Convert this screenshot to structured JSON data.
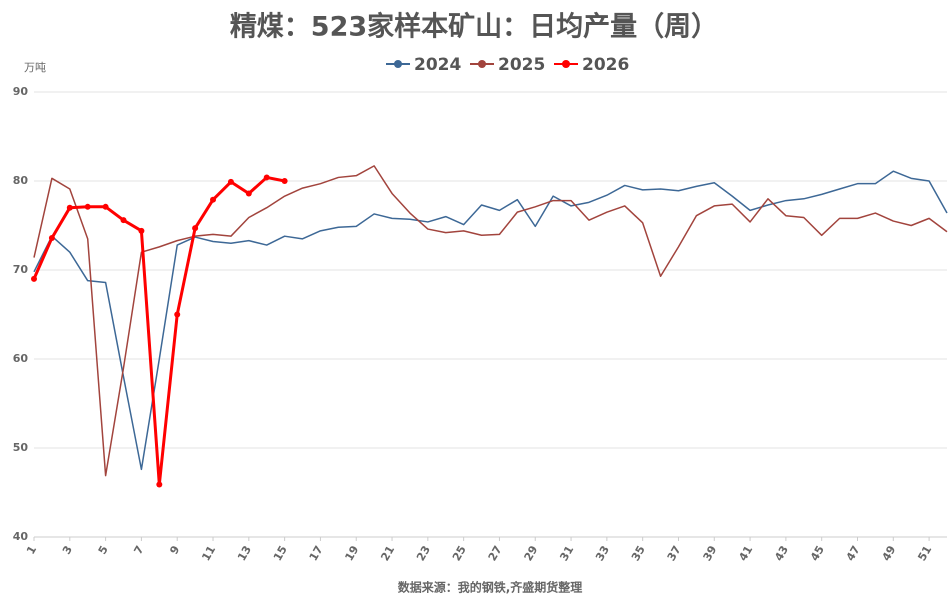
{
  "chart_data": {
    "type": "line",
    "title": "精煤：523家样本矿山：日均产量（周）",
    "y_unit": "万吨",
    "source": "数据来源：我的钢铁,齐盛期货整理",
    "x": [
      1,
      2,
      3,
      4,
      5,
      6,
      7,
      8,
      9,
      10,
      11,
      12,
      13,
      14,
      15,
      16,
      17,
      18,
      19,
      20,
      21,
      22,
      23,
      24,
      25,
      26,
      27,
      28,
      29,
      30,
      31,
      32,
      33,
      34,
      35,
      36,
      37,
      38,
      39,
      40,
      41,
      42,
      43,
      44,
      45,
      46,
      47,
      48,
      49,
      50,
      51,
      52
    ],
    "xlim": [
      1,
      52
    ],
    "xticks": [
      1,
      3,
      5,
      7,
      9,
      11,
      13,
      15,
      17,
      19,
      21,
      23,
      25,
      27,
      29,
      31,
      33,
      35,
      37,
      39,
      41,
      43,
      45,
      47,
      49,
      51
    ],
    "ylim": [
      40,
      90
    ],
    "yticks": [
      40,
      50,
      60,
      70,
      80,
      90
    ],
    "grid": true,
    "legend": "top",
    "series": [
      {
        "name": "2024",
        "color": "#3d6896",
        "width": 1.5,
        "markers": false,
        "values": [
          69.8,
          73.8,
          72,
          68.8,
          68.6,
          58,
          47.6,
          60,
          72.8,
          73.7,
          73.2,
          73,
          73.3,
          72.8,
          73.8,
          73.5,
          74.4,
          74.8,
          74.9,
          76.3,
          75.8,
          75.7,
          75.4,
          76,
          75.1,
          77.3,
          76.7,
          77.9,
          74.9,
          78.3,
          77.2,
          77.6,
          78.4,
          79.5,
          79,
          79.1,
          78.9,
          79.4,
          79.8,
          78.3,
          76.7,
          77.3,
          77.8,
          78,
          78.5,
          79.1,
          79.7,
          79.7,
          81.1,
          80.3,
          80,
          76.4
        ]
      },
      {
        "name": "2025",
        "color": "#a2443d",
        "width": 1.5,
        "markers": false,
        "values": [
          71.4,
          80.3,
          79.1,
          73.5,
          46.9,
          59,
          72,
          72.6,
          73.3,
          73.8,
          74,
          73.8,
          75.9,
          77,
          78.3,
          79.2,
          79.7,
          80.4,
          80.6,
          81.7,
          78.6,
          76.4,
          74.6,
          74.2,
          74.4,
          73.9,
          74,
          76.5,
          77.1,
          77.8,
          77.8,
          75.6,
          76.5,
          77.2,
          75.3,
          69.3,
          72.6,
          76.1,
          77.2,
          77.4,
          75.4,
          78,
          76.1,
          75.9,
          73.9,
          75.8,
          75.8,
          76.4,
          75.5,
          75,
          75.8,
          74.3
        ]
      },
      {
        "name": "2026",
        "color": "#ff0000",
        "width": 3,
        "markers": true,
        "values": [
          69,
          73.6,
          77,
          77.1,
          77.1,
          75.6,
          74.4,
          45.9,
          65,
          74.7,
          77.9,
          79.9,
          78.6,
          80.4,
          80,
          null,
          null,
          null,
          null,
          null,
          null,
          null,
          null,
          null,
          null,
          null,
          null,
          null,
          null,
          null,
          null,
          null,
          null,
          null,
          null,
          null,
          null,
          null,
          null,
          null,
          null,
          null,
          null,
          null,
          null,
          null,
          null,
          null,
          null,
          null,
          null,
          null
        ]
      }
    ]
  }
}
